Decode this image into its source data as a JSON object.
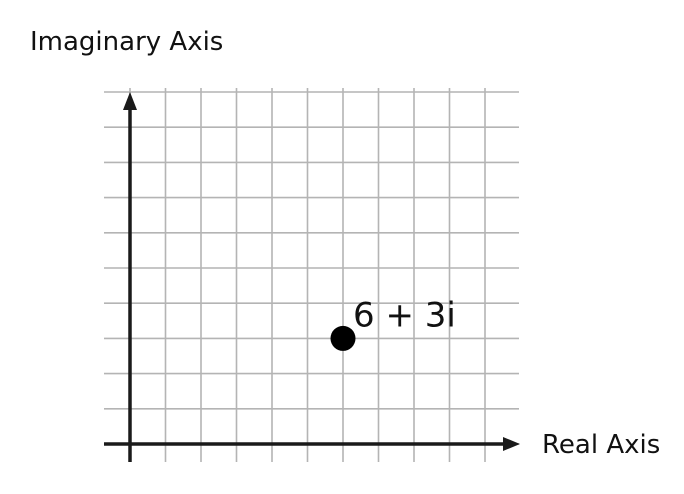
{
  "chart_data": {
    "type": "scatter",
    "xlabel": "Real Axis",
    "ylabel": "Imaginary Axis",
    "xlim": [
      0,
      11
    ],
    "ylim": [
      0,
      10
    ],
    "grid": true,
    "points": [
      {
        "x": 6,
        "y": 3,
        "label": "6 + 3i"
      }
    ]
  },
  "colors": {
    "grid": "#b4b4b4",
    "axis": "#1a1a1a",
    "point": "#000000"
  }
}
